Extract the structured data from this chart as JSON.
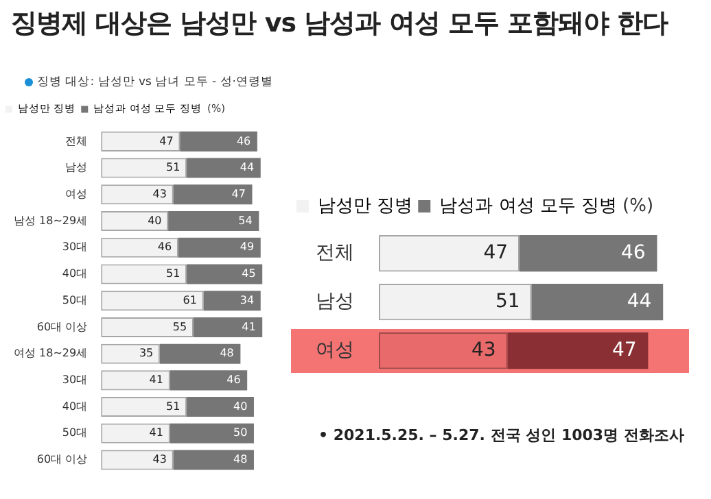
{
  "chart_data": [
    {
      "type": "bar",
      "orientation": "horizontal",
      "stacked": true,
      "title": "징병제 대상은 남성만 vs 남성과 여성 모두 포함돼야 한다",
      "subtitle": "징병 대상: 남성만 vs 남녀 모두 - 성·연령별",
      "legend": "top",
      "legend_title": "(%)",
      "tick_labels": "y",
      "data_labels": true,
      "grid": false,
      "categories": [
        "전체",
        "남성",
        "여성",
        "남성 18~29세",
        "30대",
        "40대",
        "50대",
        "60대 이상",
        "여성 18~29세",
        "30대",
        "40대",
        "50대",
        "60대 이상"
      ],
      "series": [
        {
          "name": "남성만 징병",
          "color": "#f2f2f2",
          "values": [
            47,
            51,
            43,
            40,
            46,
            51,
            61,
            55,
            35,
            41,
            51,
            41,
            43
          ]
        },
        {
          "name": "남성과 여성 모두 징병",
          "color": "#767676",
          "values": [
            46,
            44,
            47,
            54,
            49,
            45,
            34,
            41,
            48,
            46,
            40,
            50,
            48
          ]
        }
      ]
    },
    {
      "type": "bar",
      "orientation": "horizontal",
      "stacked": true,
      "legend": "top",
      "legend_title": "(%)",
      "tick_labels": "y",
      "data_labels": true,
      "grid": false,
      "categories": [
        "전체",
        "남성",
        "여성"
      ],
      "series": [
        {
          "name": "남성만 징병",
          "color": "#f2f2f2",
          "colors": [
            "#f2f2f2",
            "#f2f2f2",
            "#e96a6a"
          ],
          "values": [
            47,
            51,
            43
          ]
        },
        {
          "name": "남성과 여성 모두 징병",
          "color": "#767676",
          "colors": [
            "#767676",
            "#767676",
            "#8a3035"
          ],
          "values": [
            46,
            44,
            47
          ]
        }
      ],
      "annotations": [
        "• 2021.5.25. – 5.27. 전국 성인 1003명 전화조사"
      ]
    }
  ]
}
